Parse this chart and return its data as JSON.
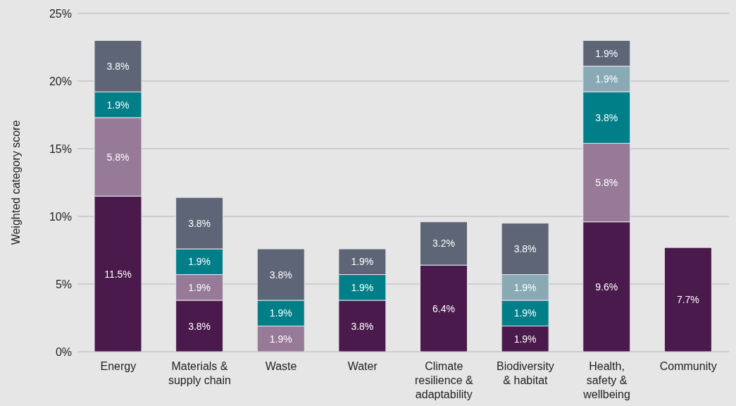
{
  "chart_data": {
    "type": "bar",
    "stacked": true,
    "ylabel": "Weighted category score",
    "categories": [
      "Energy",
      "Materials & supply chain",
      "Waste",
      "Water",
      "Climate resilience & adaptability",
      "Biodiversity & habitat",
      "Health, safety & wellbeing",
      "Community"
    ],
    "series": [
      {
        "color": "#4a1a4c",
        "values": [
          11.5,
          3.8,
          null,
          3.8,
          6.4,
          1.9,
          9.6,
          7.7
        ],
        "value_labels": [
          "11.5%",
          "3.8%",
          null,
          "3.8%",
          "6.4%",
          "1.9%",
          "9.6%",
          "7.7%"
        ]
      },
      {
        "color": "#967a97",
        "values": [
          5.8,
          1.9,
          1.9,
          null,
          null,
          null,
          5.8,
          null
        ],
        "value_labels": [
          "5.8%",
          "1.9%",
          "1.9%",
          null,
          null,
          null,
          "5.8%",
          null
        ]
      },
      {
        "color": "#007f88",
        "values": [
          1.9,
          1.9,
          1.9,
          1.9,
          null,
          1.9,
          3.8,
          null
        ],
        "value_labels": [
          "1.9%",
          "1.9%",
          "1.9%",
          "1.9%",
          null,
          "1.9%",
          "3.8%",
          null
        ]
      },
      {
        "color": "#89aab4",
        "values": [
          null,
          null,
          null,
          null,
          null,
          1.9,
          1.9,
          null
        ],
        "value_labels": [
          null,
          null,
          null,
          null,
          null,
          "1.9%",
          "1.9%",
          null
        ]
      },
      {
        "color": "#5d6577",
        "values": [
          3.8,
          3.8,
          3.8,
          1.9,
          3.2,
          3.8,
          1.9,
          null
        ],
        "value_labels": [
          "3.8%",
          "3.8%",
          "3.8%",
          "1.9%",
          "3.2%",
          "3.8%",
          "1.9%",
          null
        ]
      }
    ],
    "ylim": [
      0,
      25
    ],
    "yticks": [
      {
        "value": 0,
        "label": "0%"
      },
      {
        "value": 5,
        "label": "5%"
      },
      {
        "value": 10,
        "label": "10%"
      },
      {
        "value": 15,
        "label": "15%"
      },
      {
        "value": 20,
        "label": "20%"
      },
      {
        "value": 25,
        "label": "25%"
      }
    ],
    "grid": "y",
    "legend": false
  }
}
